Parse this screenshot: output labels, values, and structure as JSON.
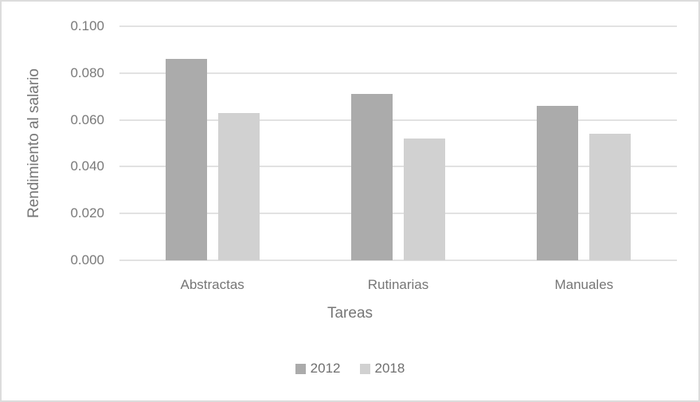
{
  "chart_data": {
    "type": "bar",
    "title": "",
    "categories": [
      "Abstractas",
      "Rutinarias",
      "Manuales"
    ],
    "series": [
      {
        "name": "2012",
        "color": "#ababab",
        "values": [
          0.086,
          0.071,
          0.066
        ]
      },
      {
        "name": "2018",
        "color": "#d1d1d1",
        "values": [
          0.063,
          0.052,
          0.054
        ]
      }
    ],
    "xlabel": "Tareas",
    "ylabel": "Rendimiento al salario",
    "ylim": [
      0,
      0.1
    ],
    "ytick_step": 0.02,
    "yticks": [
      "0.000",
      "0.020",
      "0.040",
      "0.060",
      "0.080",
      "0.100"
    ],
    "grid": "horizontal",
    "legend_position": "bottom"
  },
  "colors": {
    "gridline": "#e2e2e2",
    "frame_border": "#dcdcdc",
    "axis_text": "#767676",
    "background": "#ffffff"
  }
}
